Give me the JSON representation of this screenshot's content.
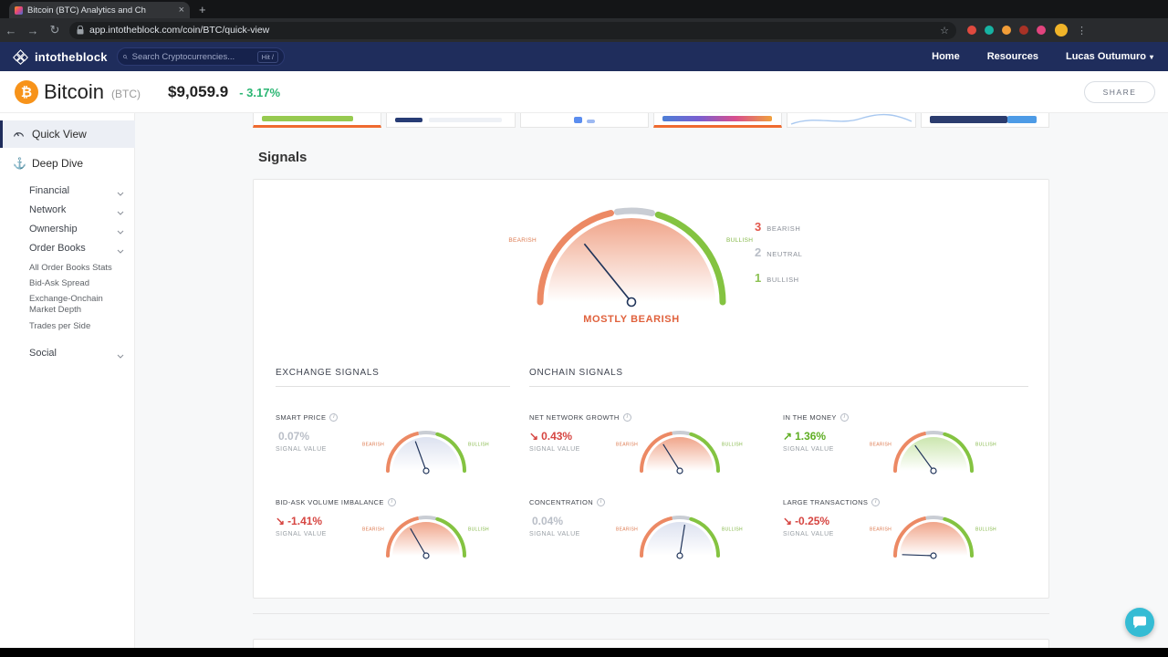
{
  "icons": {
    "back": "←",
    "forward": "→",
    "reload": "↻",
    "star": "☆",
    "menu": "⋮",
    "close": "×",
    "new_tab": "+",
    "caret_down": "▾",
    "anchor": "⚓",
    "info": "i",
    "bitcoin": "₿"
  },
  "browser": {
    "tab_title": "Bitcoin (BTC) Analytics and Ch",
    "url": "app.intotheblock.com/coin/BTC/quick-view",
    "extension_colors": [
      "#e04a3f",
      "#17b3a3",
      "#f29d38",
      "#a93226",
      "#e2447e"
    ]
  },
  "header": {
    "brand": "intotheblock",
    "search_placeholder": "Search Cryptocurrencies...",
    "search_hint": "Hit /",
    "nav_home": "Home",
    "nav_resources": "Resources",
    "user_name": "Lucas Outumuro"
  },
  "coin_bar": {
    "coin_name": "Bitcoin",
    "coin_symbol": "(BTC)",
    "price": "$9,059.9",
    "change": "- 3.17%",
    "change_color": "#2bb673",
    "share_label": "SHARE"
  },
  "sidebar": {
    "quick_view": "Quick View",
    "deep_dive": "Deep Dive",
    "groups": [
      {
        "label": "Financial"
      },
      {
        "label": "Network"
      },
      {
        "label": "Ownership"
      },
      {
        "label": "Order Books"
      }
    ],
    "order_books_children": [
      {
        "label": "All Order Books Stats"
      },
      {
        "label": "Bid-Ask Spread"
      },
      {
        "label": "Exchange-Onchain Market Depth"
      },
      {
        "label": "Trades per Side"
      }
    ],
    "social": "Social"
  },
  "signals": {
    "title": "Signals",
    "signal_value_label": "SIGNAL VALUE",
    "sections": [
      {
        "title": "EXCHANGE SIGNALS"
      },
      {
        "title": "ONCHAIN SIGNALS"
      }
    ]
  },
  "chart_data": {
    "type": "gauge",
    "palette": {
      "bearish": "#ec8964",
      "neutral": "#c9cdd4",
      "bullish": "#84c341",
      "label_bearish": "#dd7a50",
      "label_bullish": "#86b94a",
      "needle": "#20345a"
    },
    "summary": {
      "verdict": "MOSTLY BEARISH",
      "verdict_color": "#e0613c",
      "gauge": {
        "size": "large",
        "theme": "red",
        "needle_angle": 129,
        "left_label": "BEARISH",
        "right_label": "BULLISH"
      },
      "counts": [
        {
          "value": "3",
          "label": "BEARISH",
          "color": "#e2574c"
        },
        {
          "value": "2",
          "label": "NEUTRAL",
          "color": "#b9bec7"
        },
        {
          "value": "1",
          "label": "BULLISH",
          "color": "#8cc152"
        }
      ]
    },
    "gauges": [
      {
        "name": "SMART PRICE",
        "arrow": "",
        "value": "0.07%",
        "value_color": "#b9bec7",
        "size": "small",
        "theme": "blue",
        "needle_angle": 110,
        "left_label": "BEARISH",
        "right_label": "BULLISH"
      },
      {
        "name": "NET NETWORK GROWTH",
        "arrow": "↘",
        "value": "0.43%",
        "value_color": "#d64541",
        "size": "small",
        "theme": "red",
        "needle_angle": 122,
        "left_label": "BEARISH",
        "right_label": "BULLISH"
      },
      {
        "name": "IN THE MONEY",
        "arrow": "↗",
        "value": "1.36%",
        "value_color": "#5fae23",
        "size": "small",
        "theme": "green",
        "needle_angle": 126,
        "left_label": "BEARISH",
        "right_label": "BULLISH"
      },
      {
        "name": "BID-ASK VOLUME IMBALANCE",
        "arrow": "↘",
        "value": "-1.41%",
        "value_color": "#d64541",
        "size": "small",
        "theme": "red",
        "needle_angle": 120,
        "left_label": "BEARISH",
        "right_label": "BULLISH"
      },
      {
        "name": "CONCENTRATION",
        "arrow": "",
        "value": "0.04%",
        "value_color": "#b9bec7",
        "size": "small",
        "theme": "blue",
        "needle_angle": 81,
        "left_label": "BEARISH",
        "right_label": "BULLISH"
      },
      {
        "name": "LARGE TRANSACTIONS",
        "arrow": "↘",
        "value": "-0.25%",
        "value_color": "#d64541",
        "size": "small",
        "theme": "red",
        "needle_angle": 178,
        "left_label": "BEARISH",
        "right_label": "BULLISH"
      }
    ]
  }
}
